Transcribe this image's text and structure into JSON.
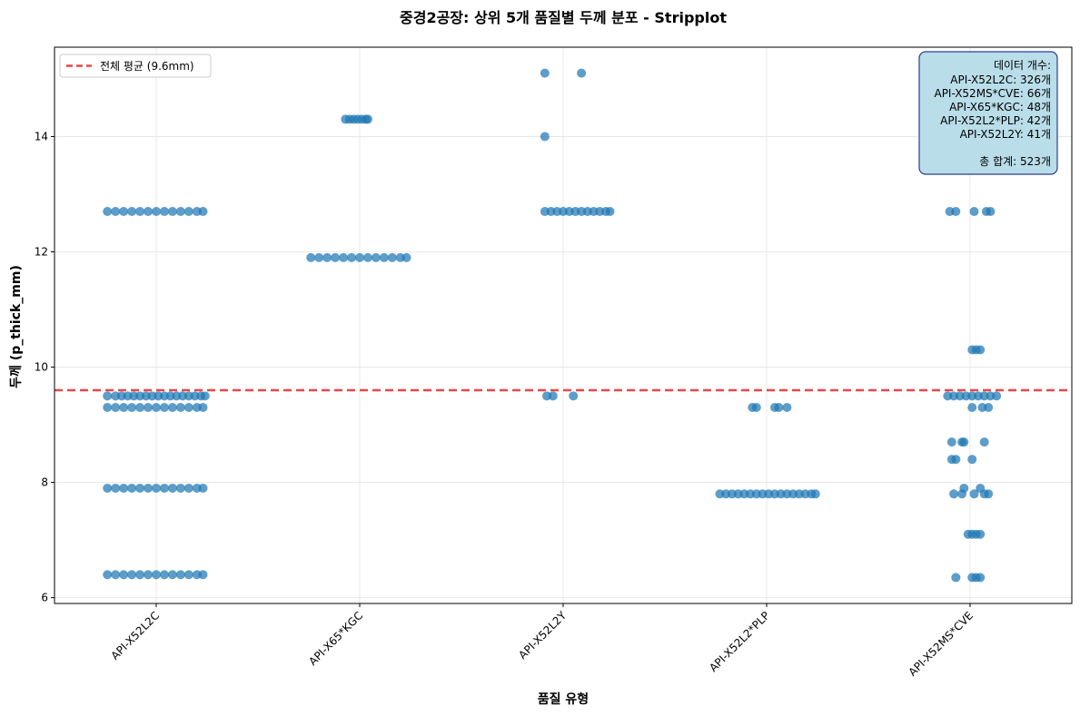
{
  "chart_data": {
    "type": "scatter",
    "subtype": "stripplot",
    "title": "중경2공장: 상위 5개 품질별 두께 분포 - Stripplot",
    "xlabel": "품질 유형",
    "ylabel": "두께 (p_thick_mm)",
    "categories": [
      "API-X52L2C",
      "API-X65*KGC",
      "API-X52L2Y",
      "API-X52L2*PLP",
      "API-X52MS*CVE"
    ],
    "ylim": [
      5.9,
      15.55
    ],
    "yticks": [
      6,
      8,
      10,
      12,
      14
    ],
    "ytick_labels": [
      "6",
      "8",
      "10",
      "12",
      "14"
    ],
    "grid": true,
    "point_color": "#1f77b4",
    "mean_line": {
      "value": 9.6,
      "color": "#e8474a",
      "label": "전체 평균 (9.6mm)"
    },
    "legend_position": "top-left",
    "series": [
      {
        "category": "API-X52L2C",
        "levels": [
          {
            "y": 12.7,
            "jitter": [
              -0.24,
              -0.2,
              -0.16,
              -0.12,
              -0.08,
              -0.04,
              0.0,
              0.04,
              0.08,
              0.12,
              0.16,
              0.2,
              0.23
            ]
          },
          {
            "y": 9.5,
            "jitter": [
              -0.24,
              -0.2,
              -0.17,
              -0.14,
              -0.11,
              -0.08,
              -0.05,
              -0.02,
              0.01,
              0.04,
              0.07,
              0.1,
              0.13,
              0.16,
              0.19,
              0.22,
              0.24
            ]
          },
          {
            "y": 9.3,
            "jitter": [
              -0.24,
              -0.2,
              -0.16,
              -0.12,
              -0.08,
              -0.04,
              0.0,
              0.04,
              0.08,
              0.12,
              0.16,
              0.2,
              0.23
            ]
          },
          {
            "y": 7.9,
            "jitter": [
              -0.24,
              -0.2,
              -0.16,
              -0.12,
              -0.08,
              -0.04,
              0.0,
              0.04,
              0.08,
              0.12,
              0.16,
              0.2,
              0.23
            ]
          },
          {
            "y": 6.4,
            "jitter": [
              -0.24,
              -0.2,
              -0.16,
              -0.12,
              -0.08,
              -0.04,
              0.0,
              0.04,
              0.08,
              0.12,
              0.16,
              0.2,
              0.23
            ]
          }
        ]
      },
      {
        "category": "API-X65*KGC",
        "levels": [
          {
            "y": 14.3,
            "jitter": [
              -0.07,
              -0.05,
              -0.03,
              -0.01,
              0.01,
              0.03,
              0.04
            ]
          },
          {
            "y": 11.9,
            "jitter": [
              -0.24,
              -0.2,
              -0.16,
              -0.12,
              -0.08,
              -0.04,
              0.0,
              0.04,
              0.08,
              0.12,
              0.16,
              0.2,
              0.23
            ]
          }
        ]
      },
      {
        "category": "API-X52L2Y",
        "levels": [
          {
            "y": 15.1,
            "jitter": [
              -0.09,
              0.09
            ]
          },
          {
            "y": 14.0,
            "jitter": [
              -0.09
            ]
          },
          {
            "y": 12.7,
            "jitter": [
              -0.09,
              -0.06,
              -0.03,
              0.0,
              0.03,
              0.06,
              0.09,
              0.12,
              0.15,
              0.18,
              0.21,
              0.23
            ]
          },
          {
            "y": 9.5,
            "jitter": [
              -0.08,
              -0.05,
              0.05
            ]
          }
        ]
      },
      {
        "category": "API-X52L2*PLP",
        "levels": [
          {
            "y": 9.3,
            "jitter": [
              -0.07,
              -0.05,
              0.04,
              0.06,
              0.1
            ]
          },
          {
            "y": 7.8,
            "jitter": [
              -0.23,
              -0.2,
              -0.17,
              -0.14,
              -0.11,
              -0.08,
              -0.05,
              -0.02,
              0.01,
              0.04,
              0.07,
              0.1,
              0.13,
              0.16,
              0.19,
              0.22,
              0.24
            ]
          }
        ]
      },
      {
        "category": "API-X52MS*CVE",
        "levels": [
          {
            "y": 12.7,
            "jitter": [
              -0.1,
              -0.07,
              0.02,
              0.08,
              0.1
            ]
          },
          {
            "y": 10.3,
            "jitter": [
              0.01,
              0.03,
              0.05
            ]
          },
          {
            "y": 9.5,
            "jitter": [
              -0.11,
              -0.08,
              -0.05,
              -0.02,
              0.01,
              0.04,
              0.07,
              0.1,
              0.13
            ]
          },
          {
            "y": 9.3,
            "jitter": [
              0.01,
              0.06,
              0.09
            ]
          },
          {
            "y": 8.7,
            "jitter": [
              -0.09,
              -0.04,
              -0.03,
              0.07
            ]
          },
          {
            "y": 8.4,
            "jitter": [
              -0.09,
              -0.07,
              0.01
            ]
          },
          {
            "y": 7.9,
            "jitter": [
              -0.03,
              0.05
            ]
          },
          {
            "y": 7.8,
            "jitter": [
              -0.08,
              -0.04,
              0.02,
              0.07,
              0.09
            ]
          },
          {
            "y": 7.1,
            "jitter": [
              -0.01,
              0.01,
              0.03,
              0.05
            ]
          },
          {
            "y": 6.35,
            "jitter": [
              -0.07,
              0.01,
              0.03,
              0.05
            ]
          }
        ]
      }
    ]
  },
  "info_box": {
    "heading": "데이터 개수:",
    "lines": [
      "API-X52L2C: 326개",
      "API-X52MS*CVE: 66개",
      "API-X65*KGC: 48개",
      "API-X52L2*PLP: 42개",
      "API-X52L2Y: 41개"
    ],
    "total": "총 합계: 523개",
    "background": "#b9dde9",
    "border": "#2c3e8f"
  }
}
